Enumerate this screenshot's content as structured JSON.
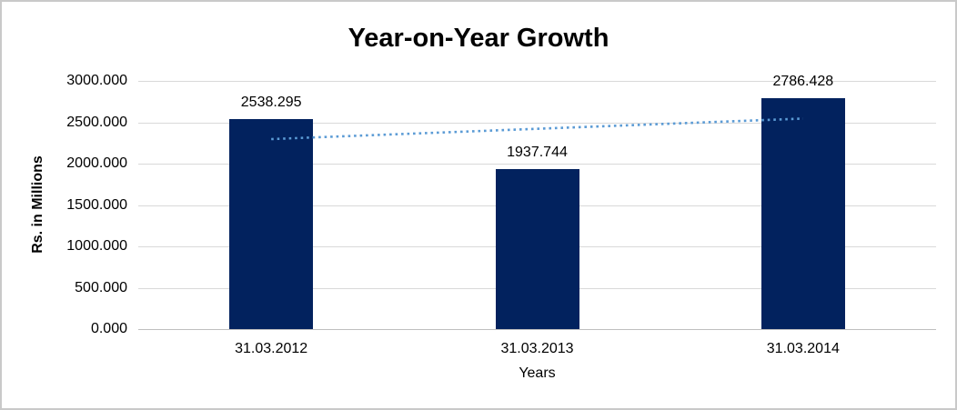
{
  "frame": {
    "background": "#ffffff",
    "border_color": "#c9c9c9"
  },
  "chart_data": {
    "type": "bar",
    "title": "Year-on-Year Growth",
    "xlabel": "Years",
    "ylabel": "Rs. in Millions",
    "categories": [
      "31.03.2012",
      "31.03.2013",
      "31.03.2014"
    ],
    "values": [
      2538.295,
      1937.744,
      2786.428
    ],
    "value_labels": [
      "2538.295",
      "1937.744",
      "2786.428"
    ],
    "ylim": [
      0,
      3000
    ],
    "yticks": [
      {
        "value": 0,
        "label": "0.000"
      },
      {
        "value": 500,
        "label": "500.000"
      },
      {
        "value": 1000,
        "label": "1000.000"
      },
      {
        "value": 1500,
        "label": "1500.000"
      },
      {
        "value": 2000,
        "label": "2000.000"
      },
      {
        "value": 2500,
        "label": "2500.000"
      },
      {
        "value": 3000,
        "label": "3000.000"
      }
    ],
    "grid": "horizontal",
    "legend": "none",
    "bar_color": "#02225e",
    "gridline_color": "#d9d9d9",
    "axisline_color": "#bfbfbf",
    "trendline": {
      "type": "linear",
      "style": "dotted",
      "color": "#5b9bd5",
      "start_value": 2296.8,
      "end_value": 2544.9
    }
  }
}
